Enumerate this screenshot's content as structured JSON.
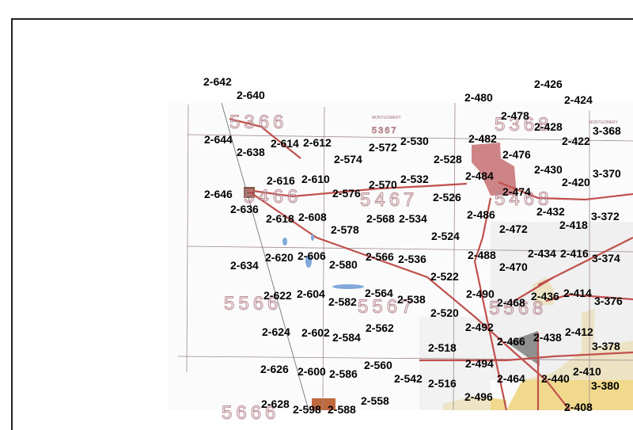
{
  "map": {
    "county_labels": [
      "MONTGOMERY",
      "MONTGOMERY"
    ],
    "grid_numbers": [
      "5366",
      "5367",
      "5466",
      "5467",
      "5368",
      "5468",
      "5566",
      "5567",
      "5568",
      "5666"
    ],
    "labels": [
      "2-642",
      "2-640",
      "2-644",
      "2-638",
      "2-614",
      "2-612",
      "2-574",
      "2-572",
      "2-530",
      "2-528",
      "2-482",
      "2-480",
      "2-478",
      "2-426",
      "2-424",
      "2-428",
      "2-422",
      "3-368",
      "2-476",
      "2-430",
      "2-420",
      "3-370",
      "2-484",
      "2-474",
      "2-432",
      "2-418",
      "3-372",
      "2-646",
      "2-636",
      "2-616",
      "2-610",
      "2-576",
      "2-570",
      "2-532",
      "2-526",
      "2-486",
      "2-472",
      "2-618",
      "2-608",
      "2-578",
      "2-568",
      "2-534",
      "2-524",
      "2-634",
      "2-620",
      "2-606",
      "2-580",
      "2-566",
      "2-536",
      "2-488",
      "2-470",
      "2-434",
      "2-416",
      "3-374",
      "2-522",
      "2-490",
      "2-468",
      "2-436",
      "2-414",
      "3-376",
      "2-520",
      "2-492",
      "2-466",
      "2-438",
      "2-412",
      "3-378",
      "2-518",
      "2-494",
      "2-464",
      "2-440",
      "2-410",
      "3-380",
      "2-516",
      "2-496",
      "2-408",
      "2-622",
      "2-604",
      "2-582",
      "2-564",
      "2-538",
      "2-624",
      "2-602",
      "2-584",
      "2-562",
      "2-626",
      "2-600",
      "2-586",
      "2-560",
      "2-542",
      "2-628",
      "2-598",
      "2-588",
      "2-558"
    ],
    "colors": {
      "roads": "#c0504d",
      "city_area": "#f0d98c",
      "highlight_area": "#c9777a",
      "grid_lines": "#a08890",
      "frame": "#222222"
    }
  }
}
